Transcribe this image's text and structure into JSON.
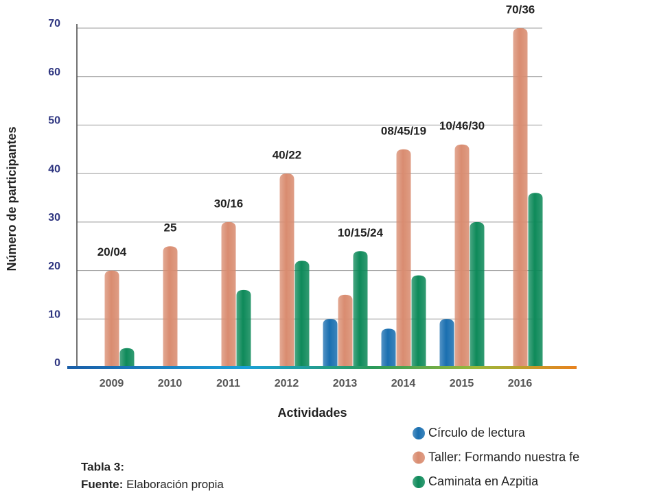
{
  "chart_data": {
    "type": "bar",
    "x_label": "Actividades",
    "y_label": "Número de participantes",
    "categories": [
      "2009",
      "2010",
      "2011",
      "2012",
      "2013",
      "2014",
      "2015",
      "2016"
    ],
    "series": [
      {
        "name": "Círculo de lectura",
        "color": "#1a6fb0",
        "values": [
          null,
          null,
          null,
          null,
          10,
          8,
          10,
          null
        ]
      },
      {
        "name": "Taller: Formando nuestra fe",
        "color": "#d98c70",
        "values": [
          20,
          25,
          30,
          40,
          15,
          45,
          46,
          70
        ]
      },
      {
        "name": "Caminata en Azpitia",
        "color": "#0e8a5a",
        "values": [
          4,
          null,
          16,
          22,
          24,
          19,
          30,
          36
        ]
      }
    ],
    "group_labels": [
      "20/04",
      "25",
      "30/16",
      "40/22",
      "10/15/24",
      "08/45/19",
      "10/46/30",
      "70/36"
    ],
    "ylim": [
      0,
      70
    ],
    "yticks": [
      0,
      10,
      20,
      30,
      40,
      50,
      60,
      70
    ],
    "grid": true,
    "table_label": "Tabla 3:",
    "source_label": "Fuente:",
    "source": "Elaboración propia"
  }
}
